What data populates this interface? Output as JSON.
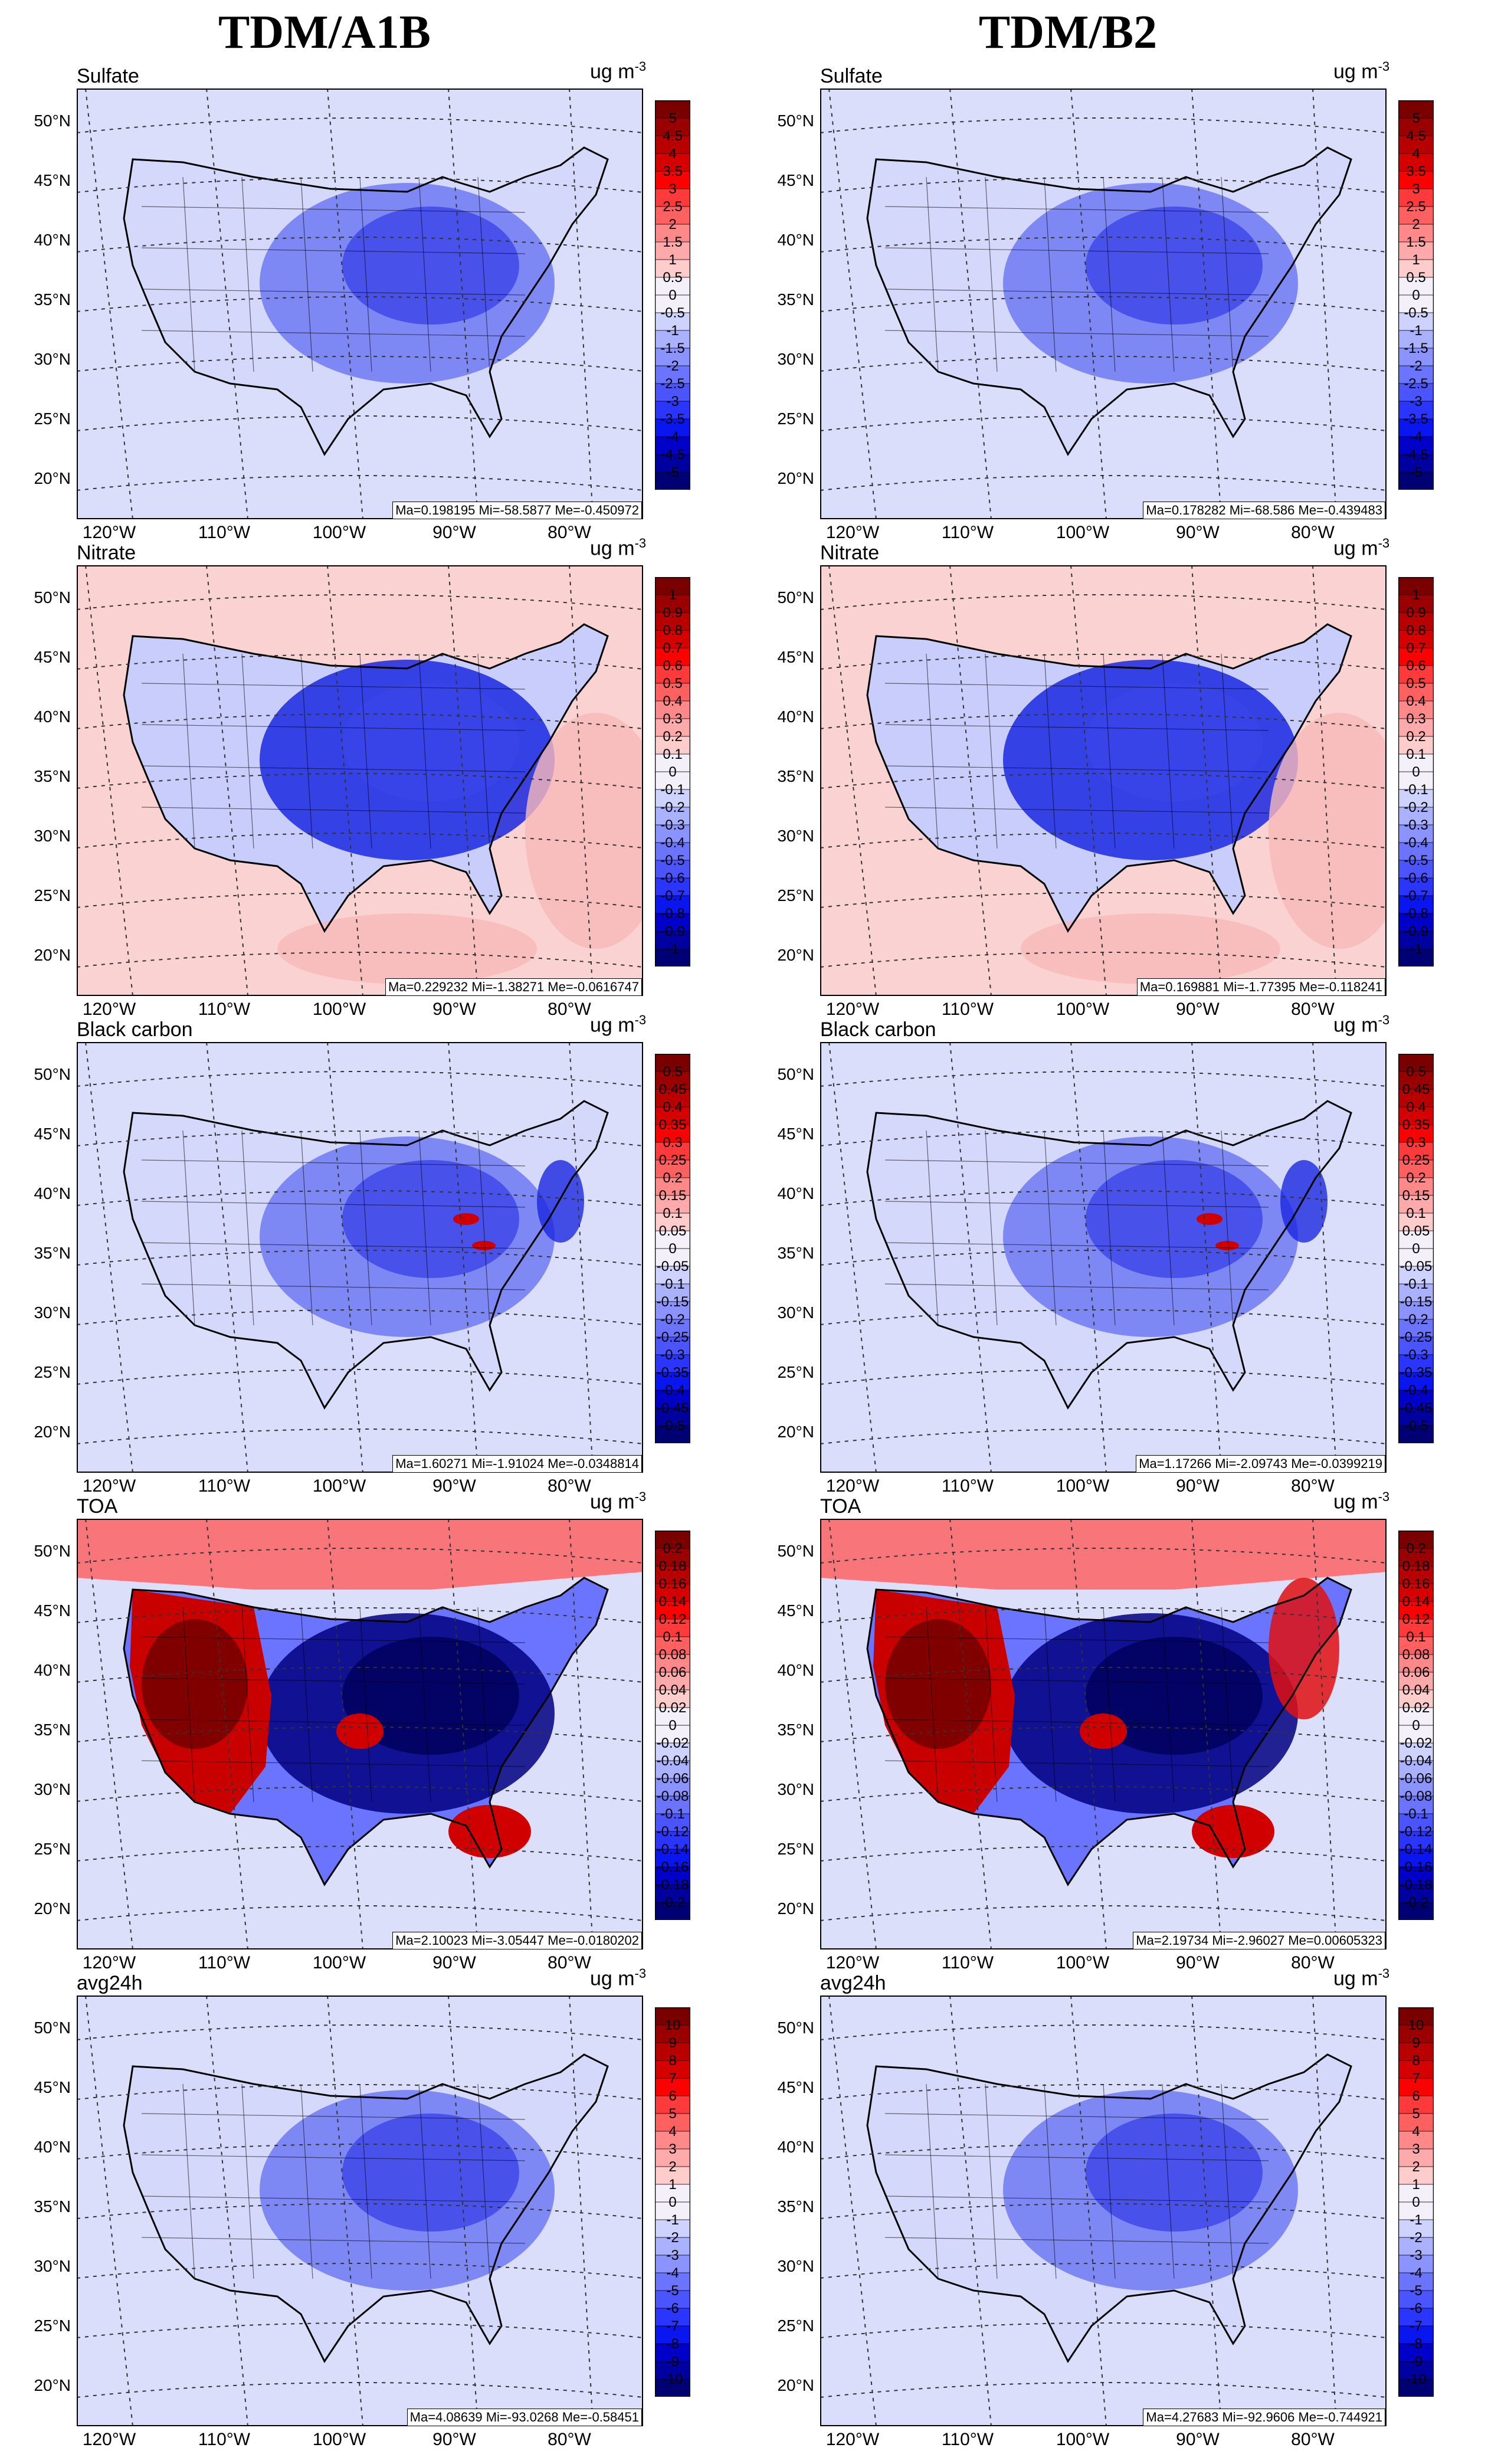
{
  "columns": [
    {
      "title": "TDM/A1B"
    },
    {
      "title": "TDM/B2"
    }
  ],
  "unit": "ug m",
  "unit_exp": "-3",
  "lat_labels": [
    "50°N",
    "45°N",
    "40°N",
    "35°N",
    "30°N",
    "25°N",
    "20°N"
  ],
  "lon_labels": [
    "120°W",
    "110°W",
    "100°W",
    "90°W",
    "80°W"
  ],
  "variables": [
    {
      "name": "Sulfate",
      "levels": [
        "5",
        "4.5",
        "4",
        "3.5",
        "3",
        "2.5",
        "2",
        "1.5",
        "1",
        "0.5",
        "0",
        "-0.5",
        "-1",
        "-1.5",
        "-2",
        "-2.5",
        "-3",
        "-3.5",
        "-4",
        "-4.5",
        "-5"
      ]
    },
    {
      "name": "Nitrate",
      "levels": [
        "1",
        "0.9",
        "0.8",
        "0.7",
        "0.6",
        "0.5",
        "0.4",
        "0.3",
        "0.2",
        "0.1",
        "0",
        "-0.1",
        "-0.2",
        "-0.3",
        "-0.4",
        "-0.5",
        "-0.6",
        "-0.7",
        "-0.8",
        "-0.9",
        "-1"
      ]
    },
    {
      "name": "Black carbon",
      "levels": [
        "0.5",
        "0.45",
        "0.4",
        "0.35",
        "0.3",
        "0.25",
        "0.2",
        "0.15",
        "0.1",
        "0.05",
        "0",
        "-0.05",
        "-0.1",
        "-0.15",
        "-0.2",
        "-0.25",
        "-0.3",
        "-0.35",
        "-0.4",
        "-0.45",
        "-0.5"
      ]
    },
    {
      "name": "TOA",
      "levels": [
        "0.2",
        "0.18",
        "0.16",
        "0.14",
        "0.12",
        "0.1",
        "0.08",
        "0.06",
        "0.04",
        "0.02",
        "0",
        "-0.02",
        "-0.04",
        "-0.06",
        "-0.08",
        "-0.1",
        "-0.12",
        "-0.14",
        "-0.16",
        "-0.18",
        "-0.2"
      ]
    },
    {
      "name": "avg24h",
      "levels": [
        "10",
        "9",
        "8",
        "7",
        "6",
        "5",
        "4",
        "3",
        "2",
        "1",
        "0",
        "-1",
        "-2",
        "-3",
        "-4",
        "-5",
        "-6",
        "-7",
        "-8",
        "-9",
        "-10"
      ]
    }
  ],
  "stats": [
    [
      "Ma=0.198195 Mi=-58.5877 Me=-0.450972",
      "Ma=0.178282 Mi=-68.586 Me=-0.439483"
    ],
    [
      "Ma=0.229232 Mi=-1.38271 Me=-0.0616747",
      "Ma=0.169881 Mi=-1.77395 Me=-0.118241"
    ],
    [
      "Ma=1.60271 Mi=-1.91024 Me=-0.0348814",
      "Ma=1.17266 Mi=-2.09743 Me=-0.0399219"
    ],
    [
      "Ma=2.10023 Mi=-3.05447 Me=-0.0180202",
      "Ma=2.19734 Mi=-2.96027 Me=0.00605323"
    ],
    [
      "Ma=4.08639 Mi=-93.0268 Me=-0.58451",
      "Ma=4.27683 Mi=-92.9606 Me=-0.744921"
    ]
  ],
  "colors": {
    "neg_dark": "#00007f",
    "neg_mid": "#3b3bff",
    "neg_light": "#cfd3ff",
    "neutral": "#eeeef7",
    "pos_light": "#ffd0d0",
    "pos_mid": "#ff3030",
    "pos_dark": "#800000",
    "land_bg": "#dde0fb"
  }
}
